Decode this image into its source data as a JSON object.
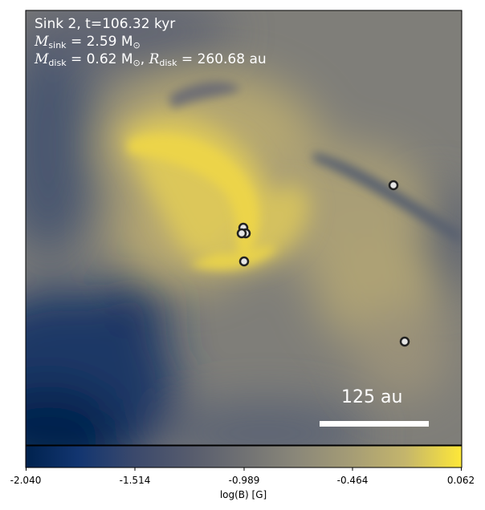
{
  "chart_data": {
    "type": "heatmap",
    "colormap": "cividis",
    "annotations": {
      "line1": "Sink 2, t=106.32 kyr",
      "m_sink_label": "M",
      "m_sink_sub": "sink",
      "m_sink_value": " = 2.59 M",
      "m_sink_unit_sub": "⊙",
      "m_disk_label": "M",
      "m_disk_sub": "disk",
      "m_disk_value": " = 0.62 M",
      "m_disk_unit_sub": "⊙",
      "r_disk_sep": ", ",
      "r_disk_label": "R",
      "r_disk_sub": "disk",
      "r_disk_value": " = 260.68 au"
    },
    "scale_bar_label": "125 au",
    "colorbar": {
      "label": "log(B) [G]",
      "range": [
        -2.04,
        0.062
      ],
      "ticks": [
        "-2.040",
        "-1.514",
        "-0.989",
        "-0.464",
        "0.062"
      ]
    },
    "sinks_count": 6
  },
  "colors": {
    "cmap_low": "#00224e",
    "cmap_mid": "#7c7b78",
    "cmap_high": "#fee838",
    "marker_edge": "#222222",
    "marker_face": "#e6e6e6"
  }
}
